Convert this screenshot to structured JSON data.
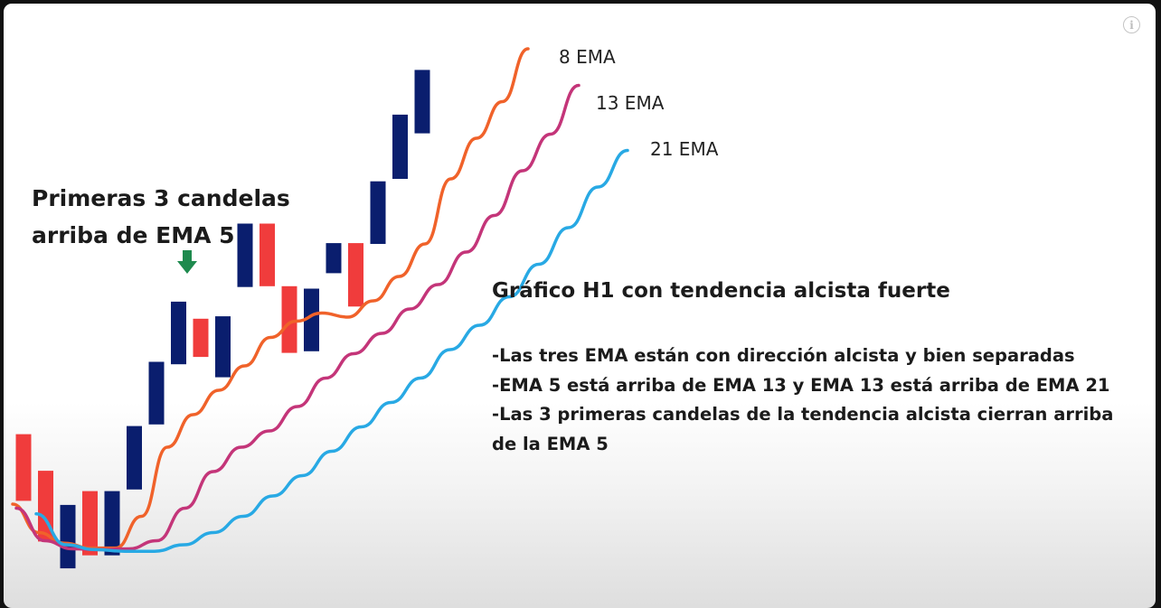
{
  "chart_data": {
    "type": "candlestick",
    "title": "Gráfico H1 con tendencia alcista fuerte",
    "candles": [
      {
        "direction": "down",
        "open": 19.6,
        "close": 11.4
      },
      {
        "direction": "down",
        "open": 15.1,
        "close": 6.4
      },
      {
        "direction": "up",
        "open": 3.1,
        "close": 10.9
      },
      {
        "direction": "down",
        "open": 12.6,
        "close": 4.7
      },
      {
        "direction": "up",
        "open": 4.7,
        "close": 12.6
      },
      {
        "direction": "up",
        "open": 12.8,
        "close": 20.6
      },
      {
        "direction": "up",
        "open": 20.8,
        "close": 28.5
      },
      {
        "direction": "up",
        "open": 28.2,
        "close": 35.9
      },
      {
        "direction": "down",
        "open": 33.8,
        "close": 29.1
      },
      {
        "direction": "up",
        "open": 26.6,
        "close": 34.1
      },
      {
        "direction": "up",
        "open": 37.7,
        "close": 45.5
      },
      {
        "direction": "down",
        "open": 45.5,
        "close": 37.8
      },
      {
        "direction": "down",
        "open": 37.8,
        "close": 29.6
      },
      {
        "direction": "up",
        "open": 29.8,
        "close": 37.5
      },
      {
        "direction": "up",
        "open": 39.4,
        "close": 43.1
      },
      {
        "direction": "down",
        "open": 43.1,
        "close": 35.3
      },
      {
        "direction": "up",
        "open": 43.0,
        "close": 50.7
      },
      {
        "direction": "up",
        "open": 51.0,
        "close": 58.9
      },
      {
        "direction": "up",
        "open": 56.6,
        "close": 64.4
      }
    ],
    "series": [
      {
        "name": "8 EMA",
        "color": "#f0622a",
        "values": [
          11.0,
          7.5,
          6.2,
          5.6,
          5.6,
          9.5,
          18.0,
          22.0,
          25.0,
          28.0,
          31.5,
          33.5,
          34.5,
          34.0,
          36.0,
          39.0,
          43.0,
          51.0,
          56.0,
          60.5,
          67.0
        ]
      },
      {
        "name": "13 EMA",
        "color": "#c43579",
        "values": [
          10.5,
          6.5,
          5.5,
          5.4,
          5.5,
          6.5,
          10.5,
          15.0,
          18.0,
          20.0,
          23.0,
          26.5,
          29.5,
          32.0,
          35.0,
          38.0,
          42.0,
          46.5,
          52.0,
          56.5,
          62.5
        ]
      },
      {
        "name": "21 EMA",
        "color": "#28a9e4",
        "values": [
          9.8,
          6.0,
          5.4,
          5.2,
          5.2,
          6.0,
          7.5,
          9.5,
          12.0,
          14.5,
          17.5,
          20.5,
          23.5,
          26.5,
          30.0,
          33.0,
          36.5,
          40.5,
          45.0,
          50.0,
          54.5
        ]
      }
    ],
    "legend": [
      "8 EMA",
      "13 EMA",
      "21 EMA"
    ]
  },
  "annotation": {
    "lines": [
      "Primeras 3 candelas",
      "arriba de EMA 5"
    ],
    "arrow_icon": "down-arrow-icon",
    "arrow_color": "#1e8a4e"
  },
  "bullets": [
    "-Las tres EMA están con dirección alcista y bien separadas",
    "-EMA 5 está arriba de EMA 13 y EMA 13 está arriba de EMA 21",
    "-Las 3 primeras candelas de la tendencia alcista cierran arriba",
    "de la EMA 5"
  ],
  "colors": {
    "up_candle": "#0a1e6e",
    "down_candle": "#f03c3c",
    "frame": "#111111"
  },
  "icons": {
    "info": "info-icon",
    "info_glyph": "i"
  }
}
